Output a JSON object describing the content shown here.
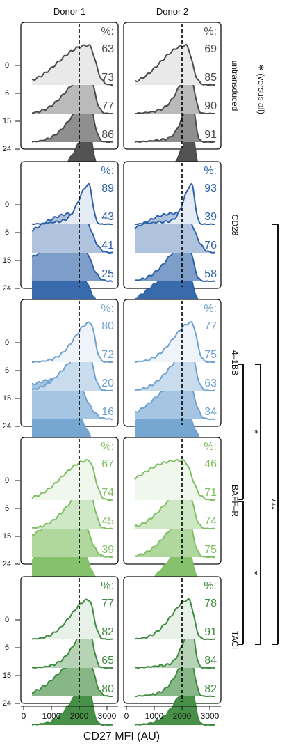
{
  "chart_data": {
    "type": "ridgeline",
    "columns": [
      "Donor 1",
      "Donor 2"
    ],
    "xlabel": "CD27 MFI (AU)",
    "xlim": [
      0,
      3300
    ],
    "xticks": [
      0,
      1000,
      2000,
      3000
    ],
    "dashed_line_x": 2000,
    "rows_y_ticks": [
      "0",
      "6",
      "15",
      "24"
    ],
    "percent_label": "%:",
    "panels": [
      {
        "name": "untransduced",
        "color": "#4a4a4a",
        "donor1": {
          "values": [
            63,
            73,
            77,
            86
          ],
          "peak": [
            2350,
            2350,
            2350,
            2350
          ]
        },
        "donor2": {
          "values": [
            69,
            85,
            90,
            91
          ],
          "peak": [
            2150,
            2300,
            2350,
            2350
          ]
        }
      },
      {
        "name": "CD28",
        "color": "#2e62a8",
        "donor1": {
          "values": [
            89,
            43,
            41,
            25
          ],
          "peak": [
            2350,
            2100,
            2050,
            1950
          ]
        },
        "donor2": {
          "values": [
            93,
            39,
            76,
            58
          ],
          "peak": [
            2350,
            2100,
            2200,
            2150
          ]
        }
      },
      {
        "name": "4–1BB",
        "color": "#6fa2d0",
        "donor1": {
          "values": [
            80,
            72,
            20,
            16
          ],
          "peak": [
            2400,
            2300,
            1800,
            1750
          ]
        },
        "donor2": {
          "values": [
            77,
            75,
            63,
            34
          ],
          "peak": [
            2350,
            2300,
            2200,
            2050
          ]
        }
      },
      {
        "name": "BAFF–R",
        "color": "#7fbf63",
        "donor1": {
          "values": [
            67,
            74,
            45,
            39
          ],
          "peak": [
            2350,
            2350,
            2050,
            2000
          ]
        },
        "donor2": {
          "values": [
            46,
            71,
            74,
            75
          ],
          "peak": [
            2050,
            2200,
            2200,
            2200
          ]
        }
      },
      {
        "name": "TACI",
        "color": "#3e8a3e",
        "donor1": {
          "values": [
            77,
            82,
            65,
            80
          ],
          "peak": [
            2350,
            2350,
            2300,
            2300
          ]
        },
        "donor2": {
          "values": [
            78,
            91,
            84,
            82
          ],
          "peak": [
            2250,
            2350,
            2300,
            2300
          ]
        }
      }
    ],
    "significance": {
      "legend": "∗ (versus all)",
      "brackets": [
        {
          "from": "4–1BB",
          "to": "BAFF–R",
          "label": "*"
        },
        {
          "from": "BAFF–R",
          "to": "TACI",
          "label": "*"
        },
        {
          "from": "4–1BB",
          "to": "TACI",
          "label": "***"
        },
        {
          "from": "CD28",
          "to": "TACI",
          "label": "*"
        }
      ]
    }
  }
}
